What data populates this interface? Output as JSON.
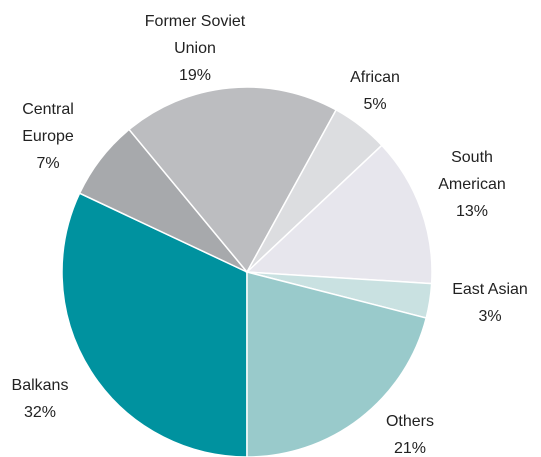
{
  "chart_data": {
    "type": "pie",
    "categories": [
      "Balkans",
      "Central Europe",
      "Former Soviet Union",
      "African",
      "South American",
      "East Asian",
      "Others"
    ],
    "values": [
      32,
      7,
      19,
      5,
      13,
      3,
      21
    ],
    "value_labels": [
      "32%",
      "7%",
      "19%",
      "5%",
      "13%",
      "3%",
      "21%"
    ],
    "colors": [
      "#00929f",
      "#a7a9ac",
      "#bcbdc0",
      "#dcdde0",
      "#e7e6ed",
      "#c9e1e1",
      "#99cacb"
    ]
  }
}
